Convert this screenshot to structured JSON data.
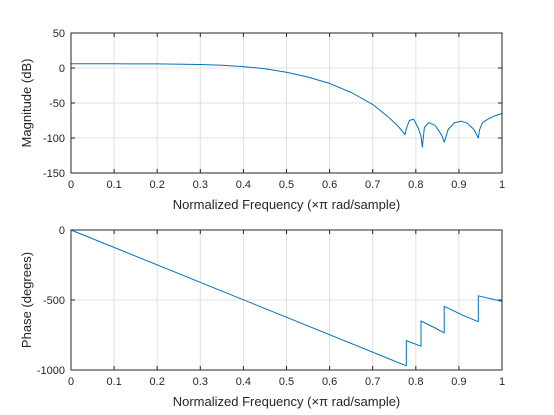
{
  "chart_data": [
    {
      "type": "line",
      "xlabel": "Normalized Frequency  (×π rad/sample)",
      "ylabel": "Magnitude (dB)",
      "xlim": [
        0,
        1
      ],
      "ylim": [
        -150,
        50
      ],
      "xticks": [
        0,
        0.1,
        0.2,
        0.3,
        0.4,
        0.5,
        0.6,
        0.7,
        0.8,
        0.9,
        1
      ],
      "xtick_labels": [
        "0",
        "0.1",
        "0.2",
        "0.3",
        "0.4",
        "0.5",
        "0.6",
        "0.7",
        "0.8",
        "0.9",
        "1"
      ],
      "yticks": [
        50,
        0,
        -50,
        -100,
        -150
      ],
      "ytick_labels": [
        "50",
        "0",
        "-50",
        "-100",
        "-150"
      ],
      "grid": true,
      "color": "#0072BD",
      "x": [
        0,
        0.1,
        0.2,
        0.3,
        0.35,
        0.4,
        0.45,
        0.5,
        0.55,
        0.6,
        0.65,
        0.7,
        0.72,
        0.74,
        0.76,
        0.775,
        0.778,
        0.785,
        0.795,
        0.805,
        0.812,
        0.815,
        0.82,
        0.83,
        0.845,
        0.86,
        0.866,
        0.875,
        0.89,
        0.905,
        0.92,
        0.935,
        0.945,
        0.948,
        0.955,
        0.97,
        0.985,
        1.0
      ],
      "y": [
        6,
        6,
        5.8,
        5,
        4,
        2,
        -1,
        -6,
        -13,
        -22,
        -35,
        -52,
        -62,
        -72,
        -84,
        -95,
        -87,
        -75,
        -73,
        -85,
        -97,
        -113,
        -85,
        -78,
        -82,
        -96,
        -106,
        -88,
        -78,
        -76,
        -79,
        -88,
        -100,
        -88,
        -78,
        -72,
        -68,
        -65
      ]
    },
    {
      "type": "line",
      "xlabel": "Normalized Frequency  (×π rad/sample)",
      "ylabel": "Phase (degrees)",
      "xlim": [
        0,
        1
      ],
      "ylim": [
        -1000,
        0
      ],
      "xticks": [
        0,
        0.1,
        0.2,
        0.3,
        0.4,
        0.5,
        0.6,
        0.7,
        0.8,
        0.9,
        1
      ],
      "xtick_labels": [
        "0",
        "0.1",
        "0.2",
        "0.3",
        "0.4",
        "0.5",
        "0.6",
        "0.7",
        "0.8",
        "0.9",
        "1"
      ],
      "yticks": [
        0,
        -500,
        -1000
      ],
      "ytick_labels": [
        "0",
        "-500",
        "-1000"
      ],
      "grid": true,
      "color": "#0072BD",
      "x": [
        0,
        0.778,
        0.778,
        0.812,
        0.812,
        0.845,
        0.866,
        0.866,
        0.91,
        0.945,
        0.945,
        1.0
      ],
      "y": [
        0,
        -970,
        -790,
        -830,
        -650,
        -700,
        -735,
        -545,
        -610,
        -655,
        -470,
        -510
      ]
    }
  ]
}
